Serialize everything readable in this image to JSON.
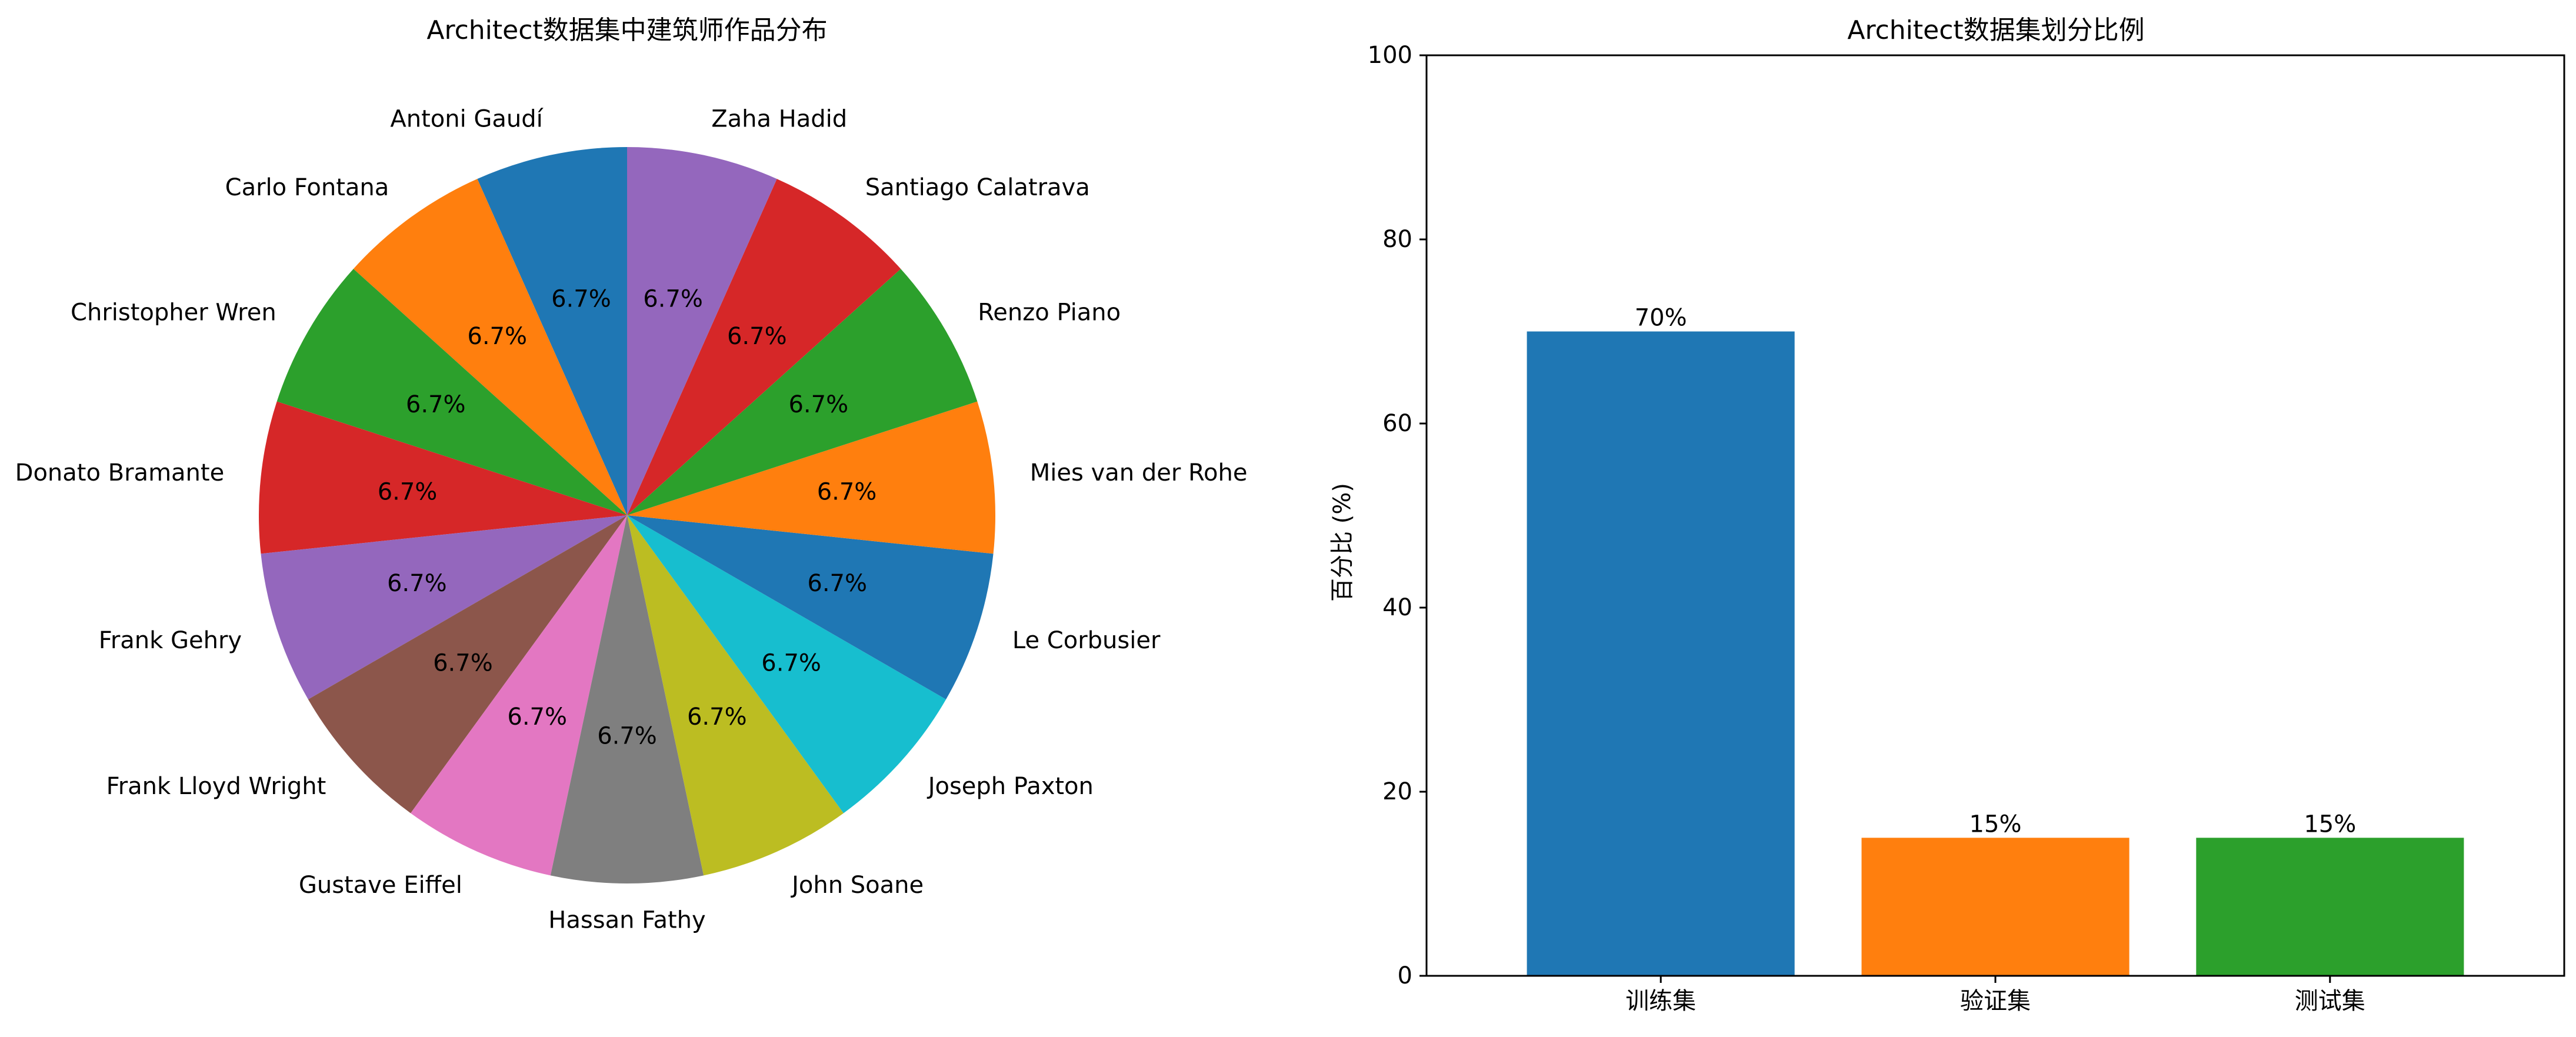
{
  "chart_data": [
    {
      "type": "pie",
      "title": "Architect数据集中建筑师作品分布",
      "categories": [
        "Antoni Gaudí",
        "Carlo Fontana",
        "Christopher Wren",
        "Donato Bramante",
        "Frank Gehry",
        "Frank Lloyd Wright",
        "Gustave Eiffel",
        "Hassan Fathy",
        "John Soane",
        "Joseph Paxton",
        "Le Corbusier",
        "Mies van der Rohe",
        "Renzo Piano",
        "Santiago Calatrava",
        "Zaha Hadid"
      ],
      "values": [
        1,
        1,
        1,
        1,
        1,
        1,
        1,
        1,
        1,
        1,
        1,
        1,
        1,
        1,
        1
      ],
      "pct_labels": [
        "6.7%",
        "6.7%",
        "6.7%",
        "6.7%",
        "6.7%",
        "6.7%",
        "6.7%",
        "6.7%",
        "6.7%",
        "6.7%",
        "6.7%",
        "6.7%",
        "6.7%",
        "6.7%",
        "6.7%"
      ],
      "colors": [
        "#1f77b4",
        "#ff7f0e",
        "#2ca02c",
        "#d62728",
        "#9467bd",
        "#8c564b",
        "#e377c2",
        "#7f7f7f",
        "#bcbd22",
        "#17becf",
        "#1f77b4",
        "#ff7f0e",
        "#2ca02c",
        "#d62728",
        "#9467bd"
      ],
      "start_angle": 90,
      "direction": "counterclockwise"
    },
    {
      "type": "bar",
      "title": "Architect数据集划分比例",
      "categories": [
        "训练集",
        "验证集",
        "测试集"
      ],
      "values": [
        70,
        15,
        15
      ],
      "value_labels": [
        "70%",
        "15%",
        "15%"
      ],
      "colors": [
        "#1f77b4",
        "#ff7f0e",
        "#2ca02c"
      ],
      "xlabel": "",
      "ylabel": "百分比 (%)",
      "ylim": [
        0,
        100
      ],
      "yticks": [
        0,
        20,
        40,
        60,
        80,
        100
      ],
      "ytick_labels": [
        "0",
        "20",
        "40",
        "60",
        "80",
        "100"
      ]
    }
  ]
}
